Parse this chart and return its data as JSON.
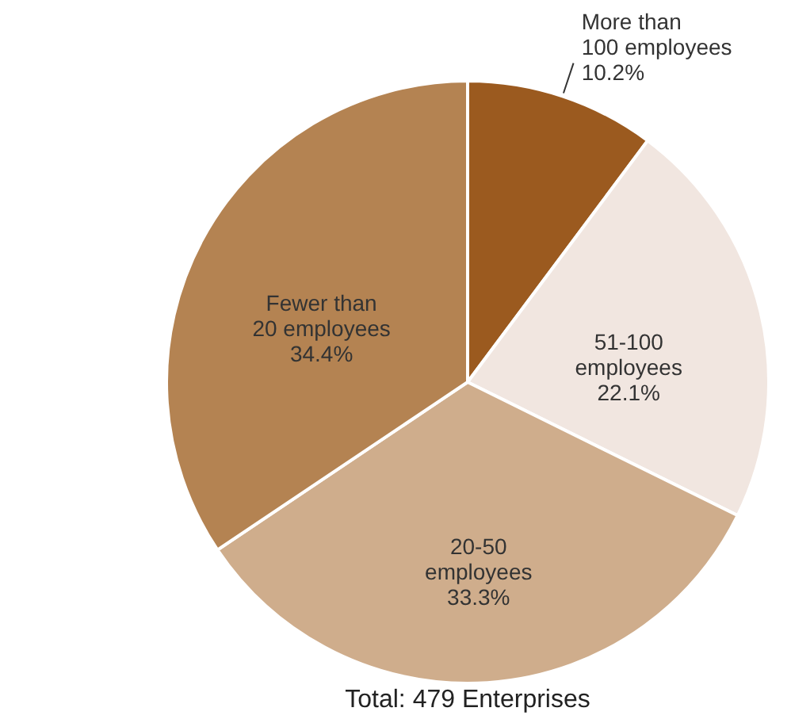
{
  "chart_data": {
    "type": "pie",
    "categories": [
      "More than 100 employees",
      "51-100 employees",
      "20-50 employees",
      "Fewer than 20 employees"
    ],
    "values": [
      10.2,
      22.1,
      33.3,
      34.4
    ],
    "value_labels": [
      "10.2%",
      "22.1%",
      "33.3%",
      "34.4%"
    ],
    "colors": [
      "#9b5a1f",
      "#f1e6e0",
      "#cfad8c",
      "#b48352"
    ],
    "annotations": [
      "Total: 479 Enterprises"
    ]
  }
}
